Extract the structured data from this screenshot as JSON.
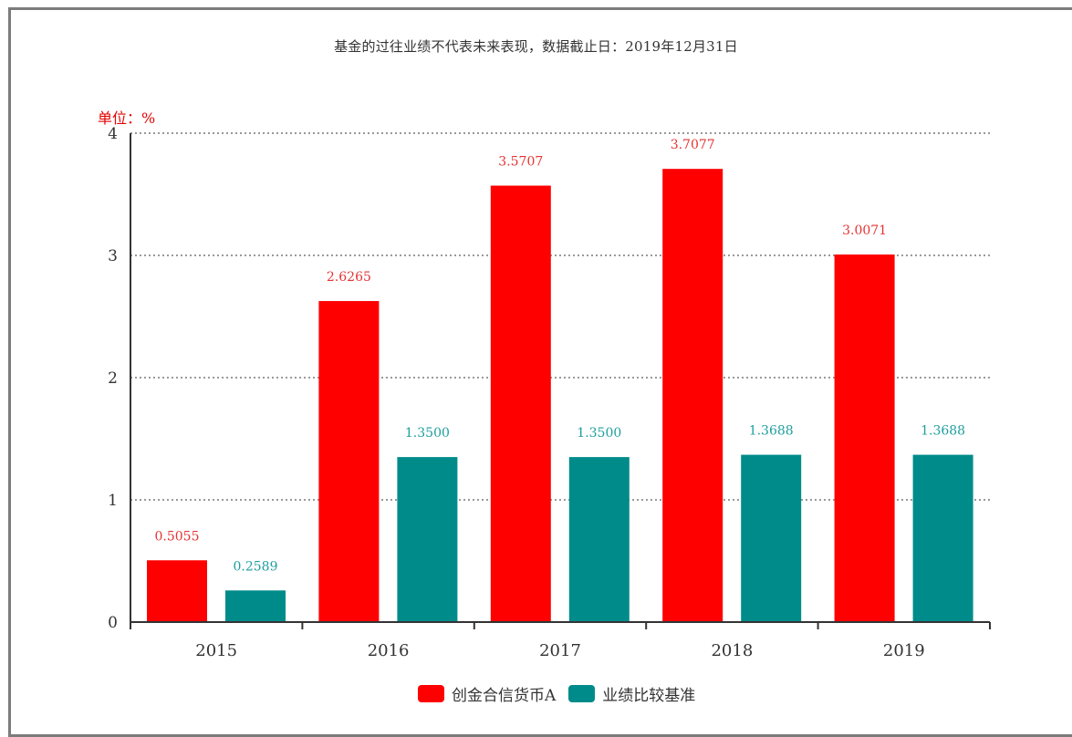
{
  "caption": "基金的过往业绩不代表未来表现，数据截止日：2019年12月31日",
  "unit_label": "单位：%",
  "colors": {
    "series_a": "#ff0000",
    "series_b": "#008b8b",
    "axis": "#333333",
    "grid": "#999999"
  },
  "chart_data": {
    "type": "bar",
    "categories": [
      "2015",
      "2016",
      "2017",
      "2018",
      "2019"
    ],
    "series": [
      {
        "name": "创金合信货币A",
        "values": [
          0.5055,
          2.6265,
          3.5707,
          3.7077,
          3.0071
        ],
        "labels": [
          "0.5055",
          "2.6265",
          "3.5707",
          "3.7077",
          "3.0071"
        ]
      },
      {
        "name": "业绩比较基准",
        "values": [
          0.2589,
          1.35,
          1.35,
          1.3688,
          1.3688
        ],
        "labels": [
          "0.2589",
          "1.3500",
          "1.3500",
          "1.3688",
          "1.3688"
        ]
      }
    ],
    "ylim": [
      0,
      4
    ],
    "yticks": [
      "0",
      "1",
      "2",
      "3",
      "4"
    ],
    "grid": true,
    "grid_style": "dotted",
    "legend_position": "bottom"
  }
}
